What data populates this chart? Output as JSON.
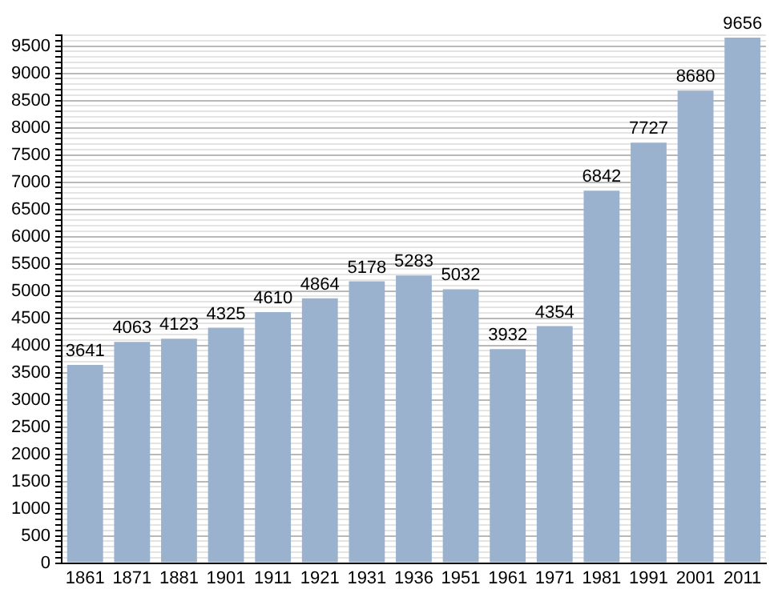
{
  "chart_data": {
    "type": "bar",
    "categories": [
      "1861",
      "1871",
      "1881",
      "1901",
      "1911",
      "1921",
      "1931",
      "1936",
      "1951",
      "1961",
      "1971",
      "1981",
      "1991",
      "2001",
      "2011"
    ],
    "values": [
      3641,
      4063,
      4123,
      4325,
      4610,
      4864,
      5178,
      5283,
      5032,
      3932,
      4354,
      6842,
      7727,
      8680,
      9656
    ],
    "color": "#9bb2cf",
    "data_labels": true,
    "grid": "y",
    "ylim": [
      0,
      9700
    ],
    "yticks": [
      0,
      {
        "value": 100,
        "label": null
      },
      {
        "value": 200,
        "label": null
      },
      {
        "value": 300,
        "label": null
      },
      {
        "value": 400,
        "label": null
      },
      500,
      {
        "value": 600,
        "label": null
      },
      {
        "value": 700,
        "label": null
      },
      {
        "value": 800,
        "label": null
      },
      {
        "value": 900,
        "label": null
      },
      1000,
      {
        "value": 1100,
        "label": null
      },
      {
        "value": 1200,
        "label": null
      },
      {
        "value": 1300,
        "label": null
      },
      {
        "value": 1400,
        "label": null
      },
      1500,
      {
        "value": 1600,
        "label": null
      },
      {
        "value": 1700,
        "label": null
      },
      {
        "value": 1800,
        "label": null
      },
      {
        "value": 1900,
        "label": null
      },
      2000,
      {
        "value": 2100,
        "label": null
      },
      {
        "value": 2200,
        "label": null
      },
      {
        "value": 2300,
        "label": null
      },
      {
        "value": 2400,
        "label": null
      },
      2500,
      {
        "value": 2600,
        "label": null
      },
      {
        "value": 2700,
        "label": null
      },
      {
        "value": 2800,
        "label": null
      },
      {
        "value": 2900,
        "label": null
      },
      3000,
      {
        "value": 3100,
        "label": null
      },
      {
        "value": 3200,
        "label": null
      },
      {
        "value": 3300,
        "label": null
      },
      {
        "value": 3400,
        "label": null
      },
      3500,
      {
        "value": 3600,
        "label": null
      },
      {
        "value": 3700,
        "label": null
      },
      {
        "value": 3800,
        "label": null
      },
      {
        "value": 3900,
        "label": null
      },
      4000,
      {
        "value": 4100,
        "label": null
      },
      {
        "value": 4200,
        "label": null
      },
      {
        "value": 4300,
        "label": null
      },
      {
        "value": 4400,
        "label": null
      },
      4500,
      {
        "value": 4600,
        "label": null
      },
      {
        "value": 4700,
        "label": null
      },
      {
        "value": 4800,
        "label": null
      },
      {
        "value": 4900,
        "label": null
      },
      5000,
      {
        "value": 5100,
        "label": null
      },
      {
        "value": 5200,
        "label": null
      },
      {
        "value": 5300,
        "label": null
      },
      {
        "value": 5400,
        "label": null
      },
      5500,
      {
        "value": 5600,
        "label": null
      },
      {
        "value": 5700,
        "label": null
      },
      {
        "value": 5800,
        "label": null
      },
      {
        "value": 5900,
        "label": null
      },
      6000,
      {
        "value": 6100,
        "label": null
      },
      {
        "value": 6200,
        "label": null
      },
      {
        "value": 6300,
        "label": null
      },
      {
        "value": 6400,
        "label": null
      },
      6500,
      {
        "value": 6600,
        "label": null
      },
      {
        "value": 6700,
        "label": null
      },
      {
        "value": 6800,
        "label": null
      },
      {
        "value": 6900,
        "label": null
      },
      7000,
      {
        "value": 7100,
        "label": null
      },
      {
        "value": 7200,
        "label": null
      },
      {
        "value": 7300,
        "label": null
      },
      {
        "value": 7400,
        "label": null
      },
      7500,
      {
        "value": 7600,
        "label": null
      },
      {
        "value": 7700,
        "label": null
      },
      {
        "value": 7800,
        "label": null
      },
      {
        "value": 7900,
        "label": null
      },
      8000,
      {
        "value": 8100,
        "label": null
      },
      {
        "value": 8200,
        "label": null
      },
      {
        "value": 8300,
        "label": null
      },
      {
        "value": 8400,
        "label": null
      },
      8500,
      {
        "value": 8600,
        "label": null
      },
      {
        "value": 8700,
        "label": null
      },
      {
        "value": 8800,
        "label": null
      },
      {
        "value": 8900,
        "label": null
      },
      9000,
      {
        "value": 9100,
        "label": null
      },
      {
        "value": 9200,
        "label": null
      },
      {
        "value": 9300,
        "label": null
      },
      {
        "value": 9400,
        "label": null
      },
      9500,
      {
        "value": 9600,
        "label": null
      },
      {
        "value": 9700,
        "label": null
      }
    ]
  }
}
